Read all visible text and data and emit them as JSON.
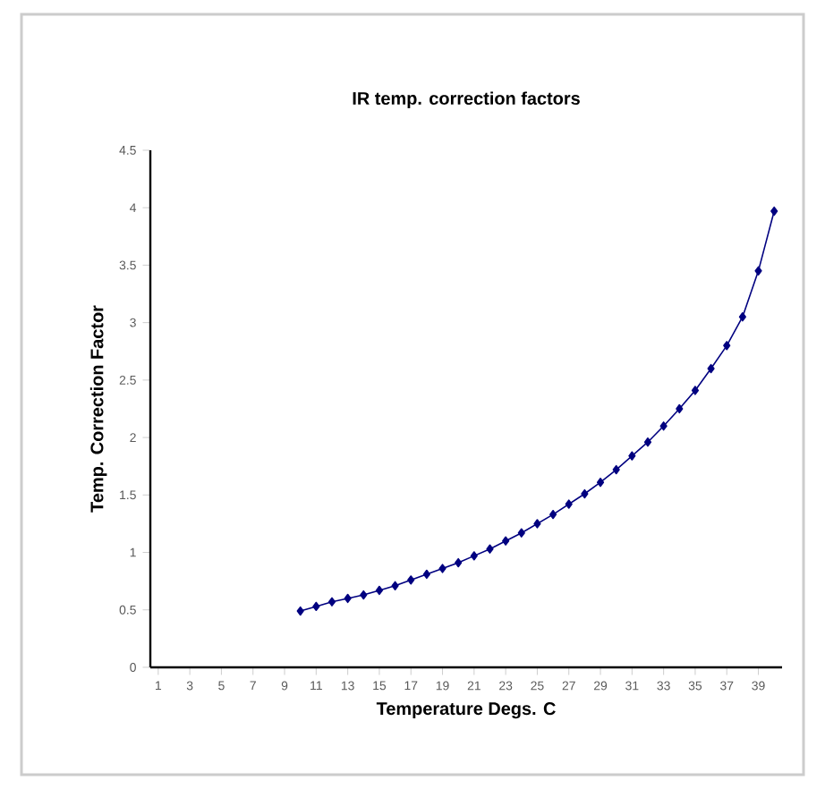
{
  "chart_data": {
    "type": "line",
    "title": "IR temp. correction factors",
    "xlabel": "Temperature Degs. C",
    "ylabel": "Temp. Correction Factor",
    "categories": [
      "1",
      null,
      "3",
      null,
      "5",
      null,
      "7",
      null,
      "9",
      null,
      "11",
      null,
      "13",
      null,
      "15",
      null,
      "17",
      null,
      "19",
      null,
      "21",
      null,
      "23",
      null,
      "25",
      null,
      "27",
      null,
      "29",
      null,
      "31",
      null,
      "33",
      null,
      "35",
      null,
      "37",
      null,
      "39",
      null
    ],
    "series": [
      {
        "color": "#000080",
        "values": [
          null,
          null,
          null,
          null,
          null,
          null,
          null,
          null,
          null,
          0.49,
          0.53,
          0.57,
          0.6,
          0.63,
          0.67,
          0.71,
          0.76,
          0.81,
          0.86,
          0.91,
          0.97,
          1.03,
          1.1,
          1.17,
          1.25,
          1.33,
          1.42,
          1.51,
          1.61,
          1.72,
          1.84,
          1.96,
          2.1,
          2.25,
          2.41,
          2.6,
          2.8,
          3.05,
          3.45,
          3.97
        ]
      }
    ],
    "ylim": [
      0,
      4.5
    ],
    "yticks": [
      0,
      0.5,
      1,
      1.5,
      2,
      2.5,
      3,
      3.5,
      4,
      4.5
    ],
    "marker": "diamond",
    "grid": false
  }
}
